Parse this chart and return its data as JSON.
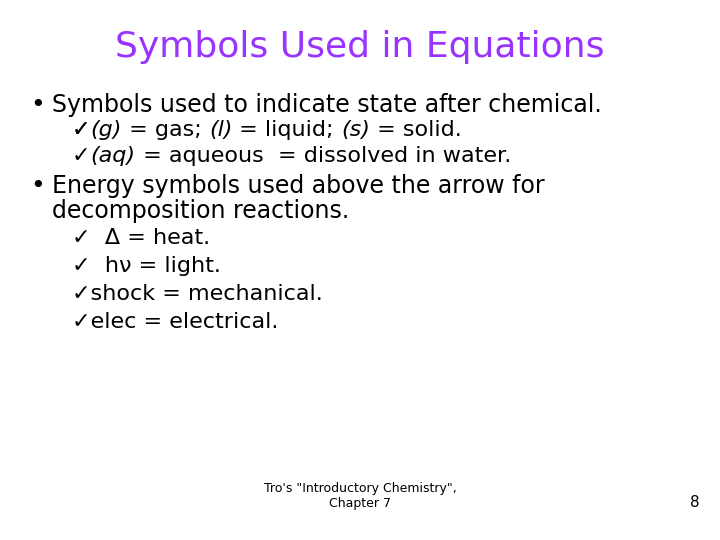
{
  "title": "Symbols Used in Equations",
  "title_color": "#9933FF",
  "title_fontsize": 26,
  "background_color": "#FFFFFF",
  "text_color": "#000000",
  "bullet1": "Symbols used to indicate state after chemical.",
  "sub1a_check": "✓",
  "sub1a_italic": "(g)",
  "sub1a_rest": " = gas; ",
  "sub1a_italic2": "(l)",
  "sub1a_rest2": " = liquid; ",
  "sub1a_italic3": "(s)",
  "sub1a_rest3": " = solid.",
  "sub1b_check": "✓",
  "sub1b_italic": "(aq)",
  "sub1b_rest": " = aqueous  = dissolved in water.",
  "bullet2_line1": "Energy symbols used above the arrow for",
  "bullet2_line2": "decomposition reactions.",
  "sub2a": "✓  Δ = heat.",
  "sub2b": "✓  hν = light.",
  "sub2c": "✓shock = mechanical.",
  "sub2d": "✓elec = electrical.",
  "footer": "Tro's \"Introductory Chemistry\",\nChapter 7",
  "page_num": "8",
  "title_fontsize_val": 26,
  "body_fontsize": 17,
  "sub_fontsize": 16,
  "footer_fontsize": 9
}
